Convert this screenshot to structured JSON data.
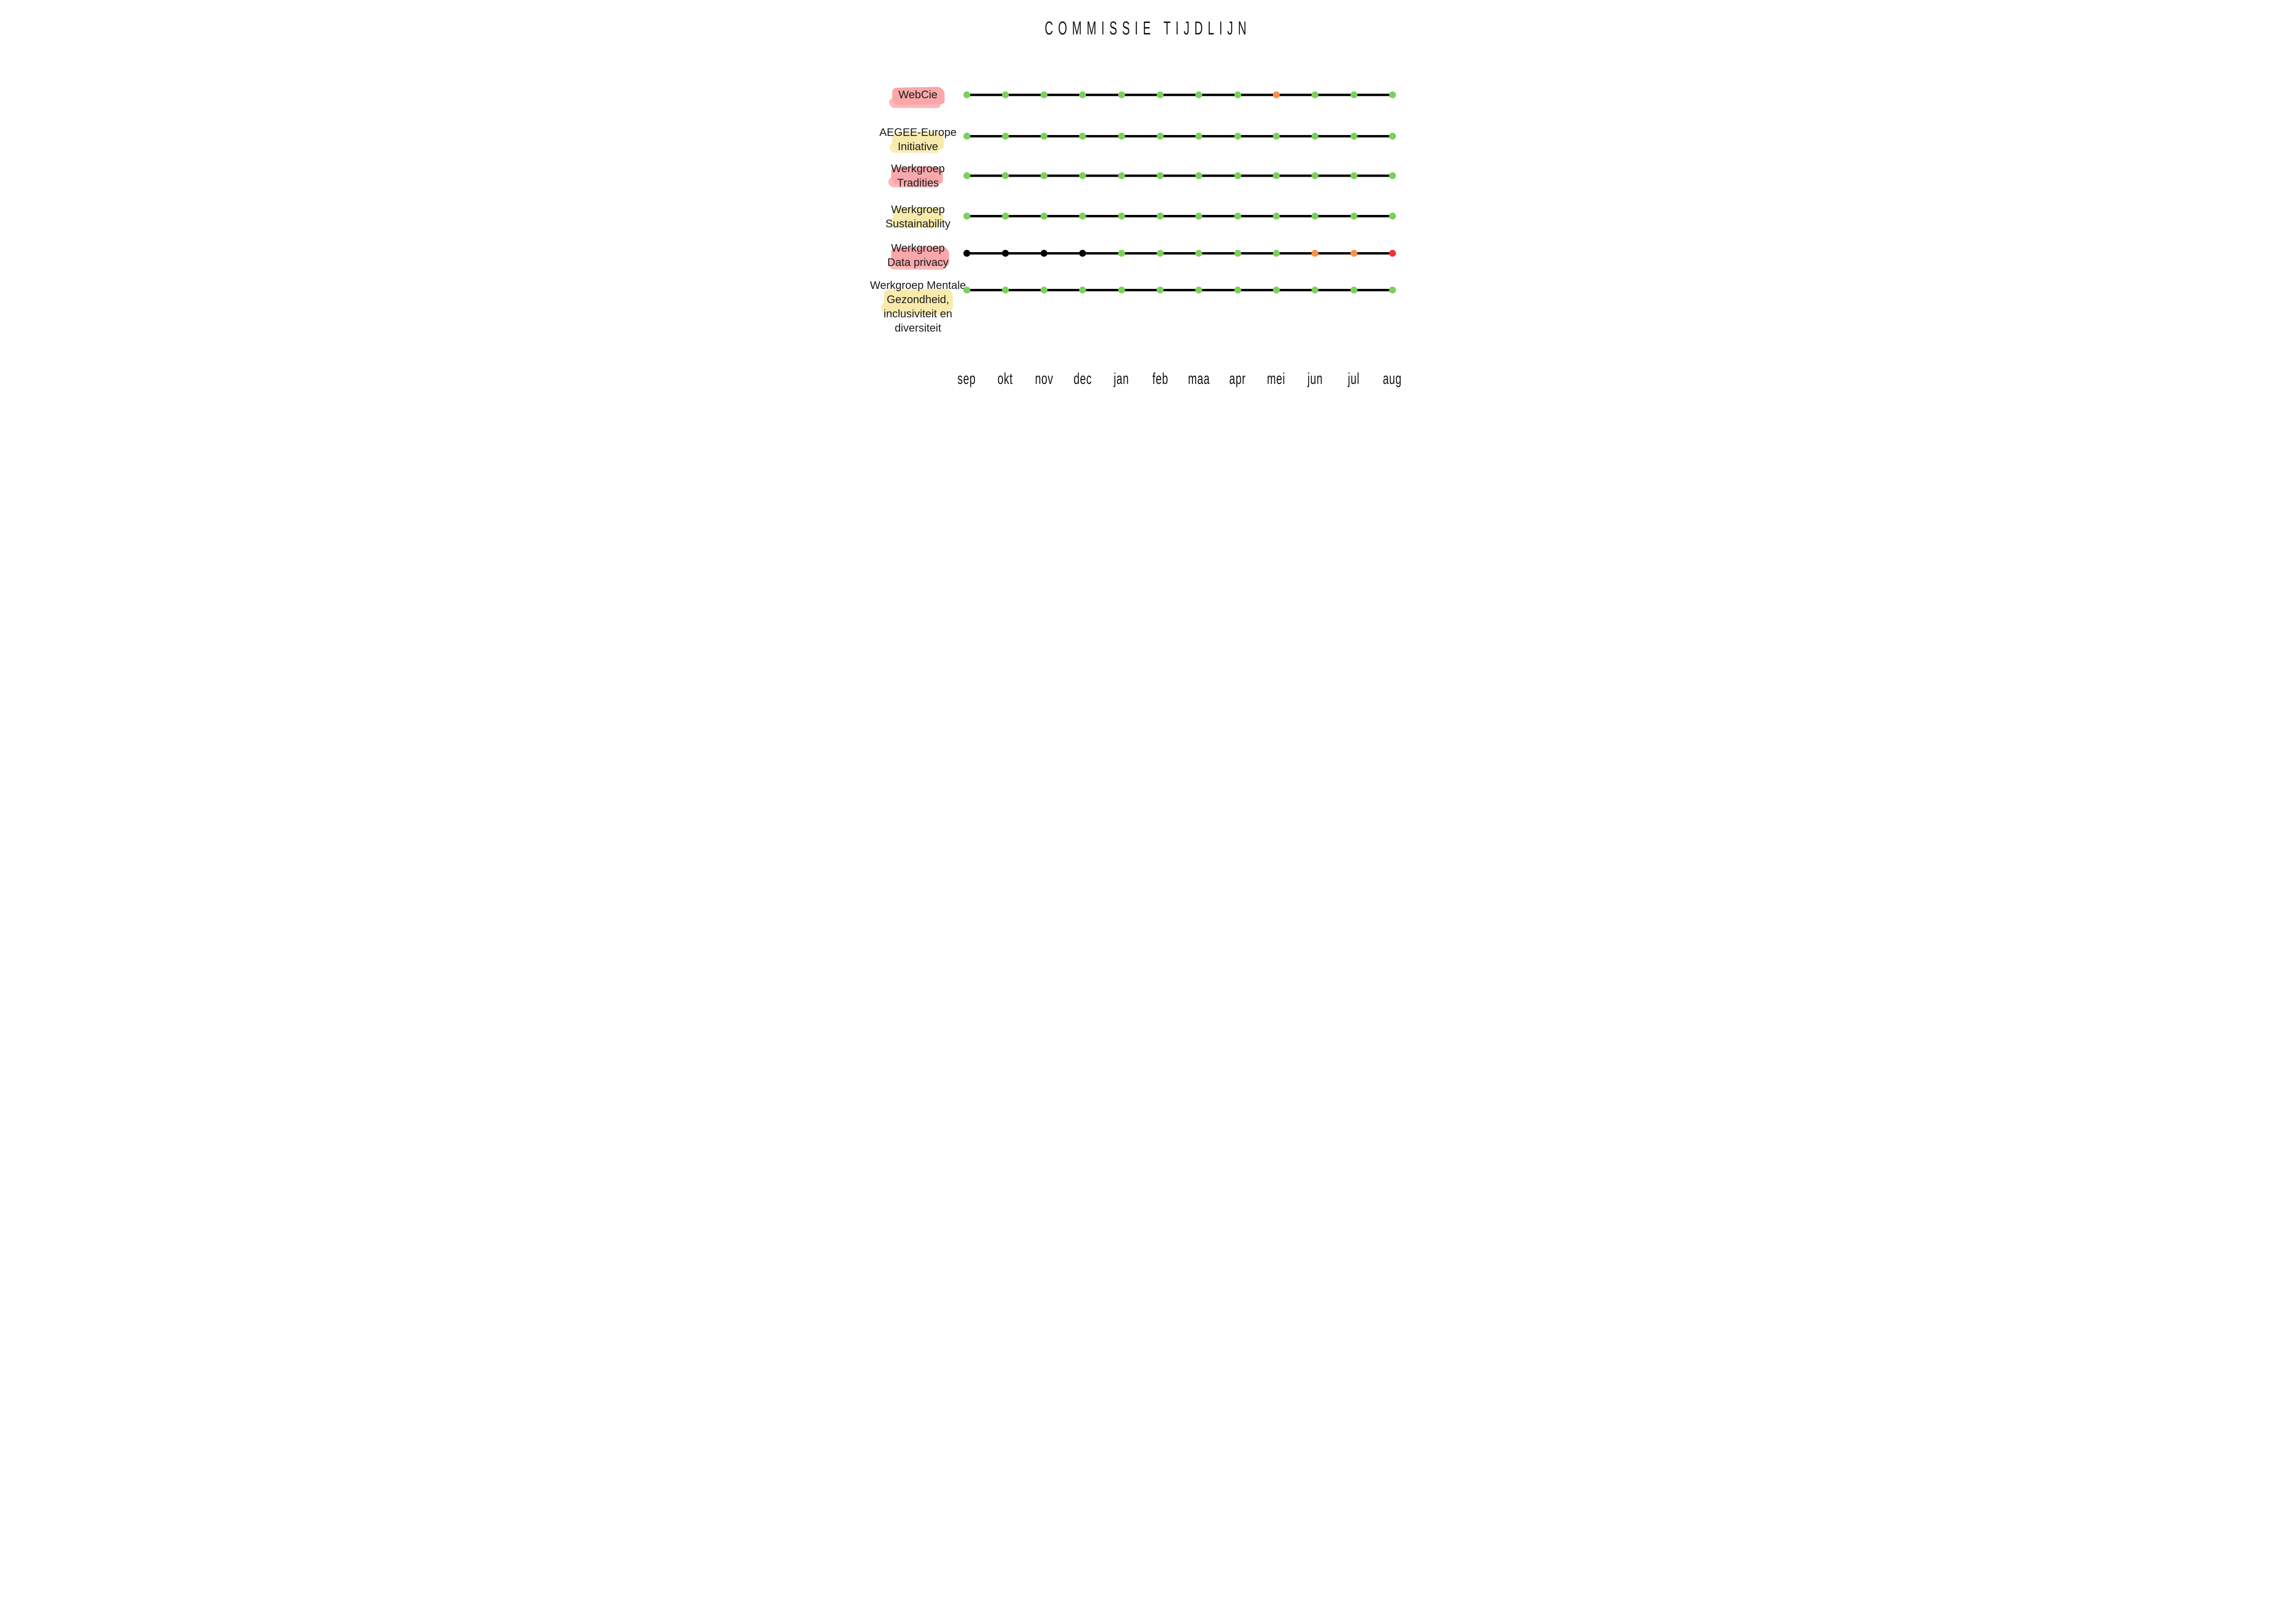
{
  "title": "COMMISSIE TIJDLIJN",
  "colors": {
    "green": "#79d25a",
    "orange": "#fd8e45",
    "red": "#fe2e2e",
    "black": "#000000",
    "highlight_pink": "#f9a3a6",
    "highlight_yellow": "#f7e9a8",
    "line": "#000000"
  },
  "months": [
    "sep",
    "okt",
    "nov",
    "dec",
    "jan",
    "feb",
    "maa",
    "apr",
    "mei",
    "jun",
    "jul",
    "aug"
  ],
  "rows": [
    {
      "label_lines": [
        "WebCie"
      ],
      "highlight": "pink",
      "dots": [
        "green",
        "green",
        "green",
        "green",
        "green",
        "green",
        "green",
        "green",
        "orange",
        "green",
        "green",
        "green"
      ]
    },
    {
      "label_lines": [
        "AEGEE-Europe",
        "Initiative"
      ],
      "highlight": "yellow",
      "dots": [
        "green",
        "green",
        "green",
        "green",
        "green",
        "green",
        "green",
        "green",
        "green",
        "green",
        "green",
        "green"
      ]
    },
    {
      "label_lines": [
        "Werkgroep",
        "Tradities"
      ],
      "highlight": "pink",
      "dots": [
        "green",
        "green",
        "green",
        "green",
        "green",
        "green",
        "green",
        "green",
        "green",
        "green",
        "green",
        "green"
      ]
    },
    {
      "label_lines": [
        "Werkgroep",
        "Sustainability"
      ],
      "highlight": "yellow",
      "dots": [
        "green",
        "green",
        "green",
        "green",
        "green",
        "green",
        "green",
        "green",
        "green",
        "green",
        "green",
        "green"
      ]
    },
    {
      "label_lines": [
        "Werkgroep",
        "Data privacy"
      ],
      "highlight": "pink",
      "dots": [
        "black",
        "black",
        "black",
        "black",
        "green",
        "green",
        "green",
        "green",
        "green",
        "orange",
        "orange",
        "red"
      ]
    },
    {
      "label_lines": [
        "Werkgroep Mentale",
        "Gezondheid,",
        "inclusiviteit en",
        "diversiteit"
      ],
      "highlight": "yellow",
      "dots": [
        "green",
        "green",
        "green",
        "green",
        "green",
        "green",
        "green",
        "green",
        "green",
        "green",
        "green",
        "green"
      ]
    }
  ],
  "chart_data": {
    "type": "heatmap",
    "title": "COMMISSIE TIJDLIJN",
    "x": [
      "sep",
      "okt",
      "nov",
      "dec",
      "jan",
      "feb",
      "maa",
      "apr",
      "mei",
      "jun",
      "jul",
      "aug"
    ],
    "rows": [
      "WebCie",
      "AEGEE-Europe Initiative",
      "Werkgroep Tradities",
      "Werkgroep Sustainability",
      "Werkgroep Data privacy",
      "Werkgroep Mentale Gezondheid, inclusiviteit en diversiteit"
    ],
    "values": [
      [
        "green",
        "green",
        "green",
        "green",
        "green",
        "green",
        "green",
        "green",
        "orange",
        "green",
        "green",
        "green"
      ],
      [
        "green",
        "green",
        "green",
        "green",
        "green",
        "green",
        "green",
        "green",
        "green",
        "green",
        "green",
        "green"
      ],
      [
        "green",
        "green",
        "green",
        "green",
        "green",
        "green",
        "green",
        "green",
        "green",
        "green",
        "green",
        "green"
      ],
      [
        "green",
        "green",
        "green",
        "green",
        "green",
        "green",
        "green",
        "green",
        "green",
        "green",
        "green",
        "green"
      ],
      [
        "black",
        "black",
        "black",
        "black",
        "green",
        "green",
        "green",
        "green",
        "green",
        "orange",
        "orange",
        "red"
      ],
      [
        "green",
        "green",
        "green",
        "green",
        "green",
        "green",
        "green",
        "green",
        "green",
        "green",
        "green",
        "green"
      ]
    ],
    "status_colors": {
      "green": "#79d25a",
      "orange": "#fd8e45",
      "red": "#fe2e2e",
      "black": "#000000"
    },
    "legend": "none",
    "grid": false
  }
}
